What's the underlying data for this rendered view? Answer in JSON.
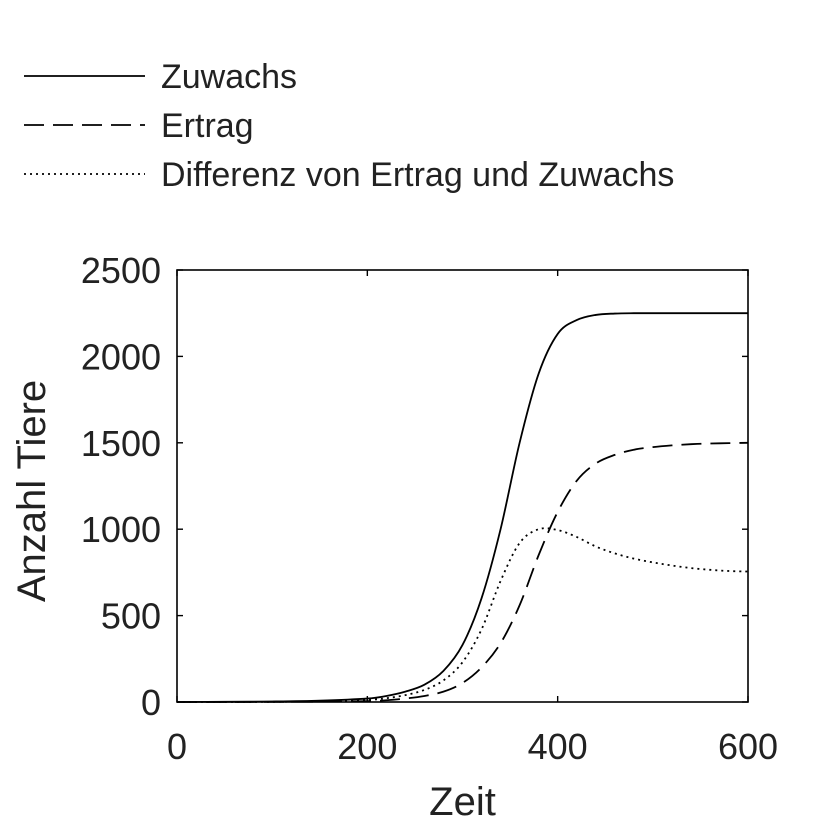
{
  "chart_data": {
    "type": "line",
    "title": "",
    "xlabel": "Zeit",
    "ylabel": "Anzahl Tiere",
    "xlim": [
      0,
      600
    ],
    "ylim": [
      0,
      2500
    ],
    "xticks": [
      0,
      200,
      400,
      600
    ],
    "yticks": [
      0,
      500,
      1000,
      1500,
      2000,
      2500
    ],
    "xtick_labels": [
      "0",
      "200",
      "400",
      "600"
    ],
    "ytick_labels": [
      "0",
      "500",
      "1000",
      "1500",
      "2000",
      "2500"
    ],
    "grid": false,
    "legend_position": "top-left-outside",
    "x": [
      0,
      50,
      100,
      150,
      200,
      220,
      240,
      260,
      280,
      300,
      320,
      340,
      360,
      380,
      400,
      420,
      440,
      460,
      480,
      500,
      520,
      540,
      560,
      580,
      600
    ],
    "series": [
      {
        "name": "Zuwachs",
        "style": "solid",
        "color": "#000000",
        "values": [
          0,
          1,
          3,
          8,
          20,
          35,
          60,
          100,
          180,
          330,
          600,
          1000,
          1500,
          1900,
          2130,
          2210,
          2240,
          2248,
          2250,
          2250,
          2250,
          2250,
          2250,
          2250,
          2250
        ]
      },
      {
        "name": "Ertrag",
        "style": "dashed",
        "color": "#000000",
        "values": [
          0,
          0,
          1,
          2,
          5,
          10,
          20,
          35,
          60,
          110,
          200,
          340,
          560,
          850,
          1100,
          1280,
          1380,
          1430,
          1460,
          1475,
          1485,
          1492,
          1496,
          1498,
          1500
        ]
      },
      {
        "name": "Differenz von Ertrag und Zuwachs",
        "style": "dotted",
        "color": "#000000",
        "values": [
          0,
          0,
          1,
          4,
          12,
          22,
          40,
          70,
          125,
          230,
          420,
          700,
          920,
          1000,
          995,
          955,
          900,
          860,
          830,
          808,
          790,
          775,
          765,
          758,
          755
        ]
      }
    ]
  }
}
